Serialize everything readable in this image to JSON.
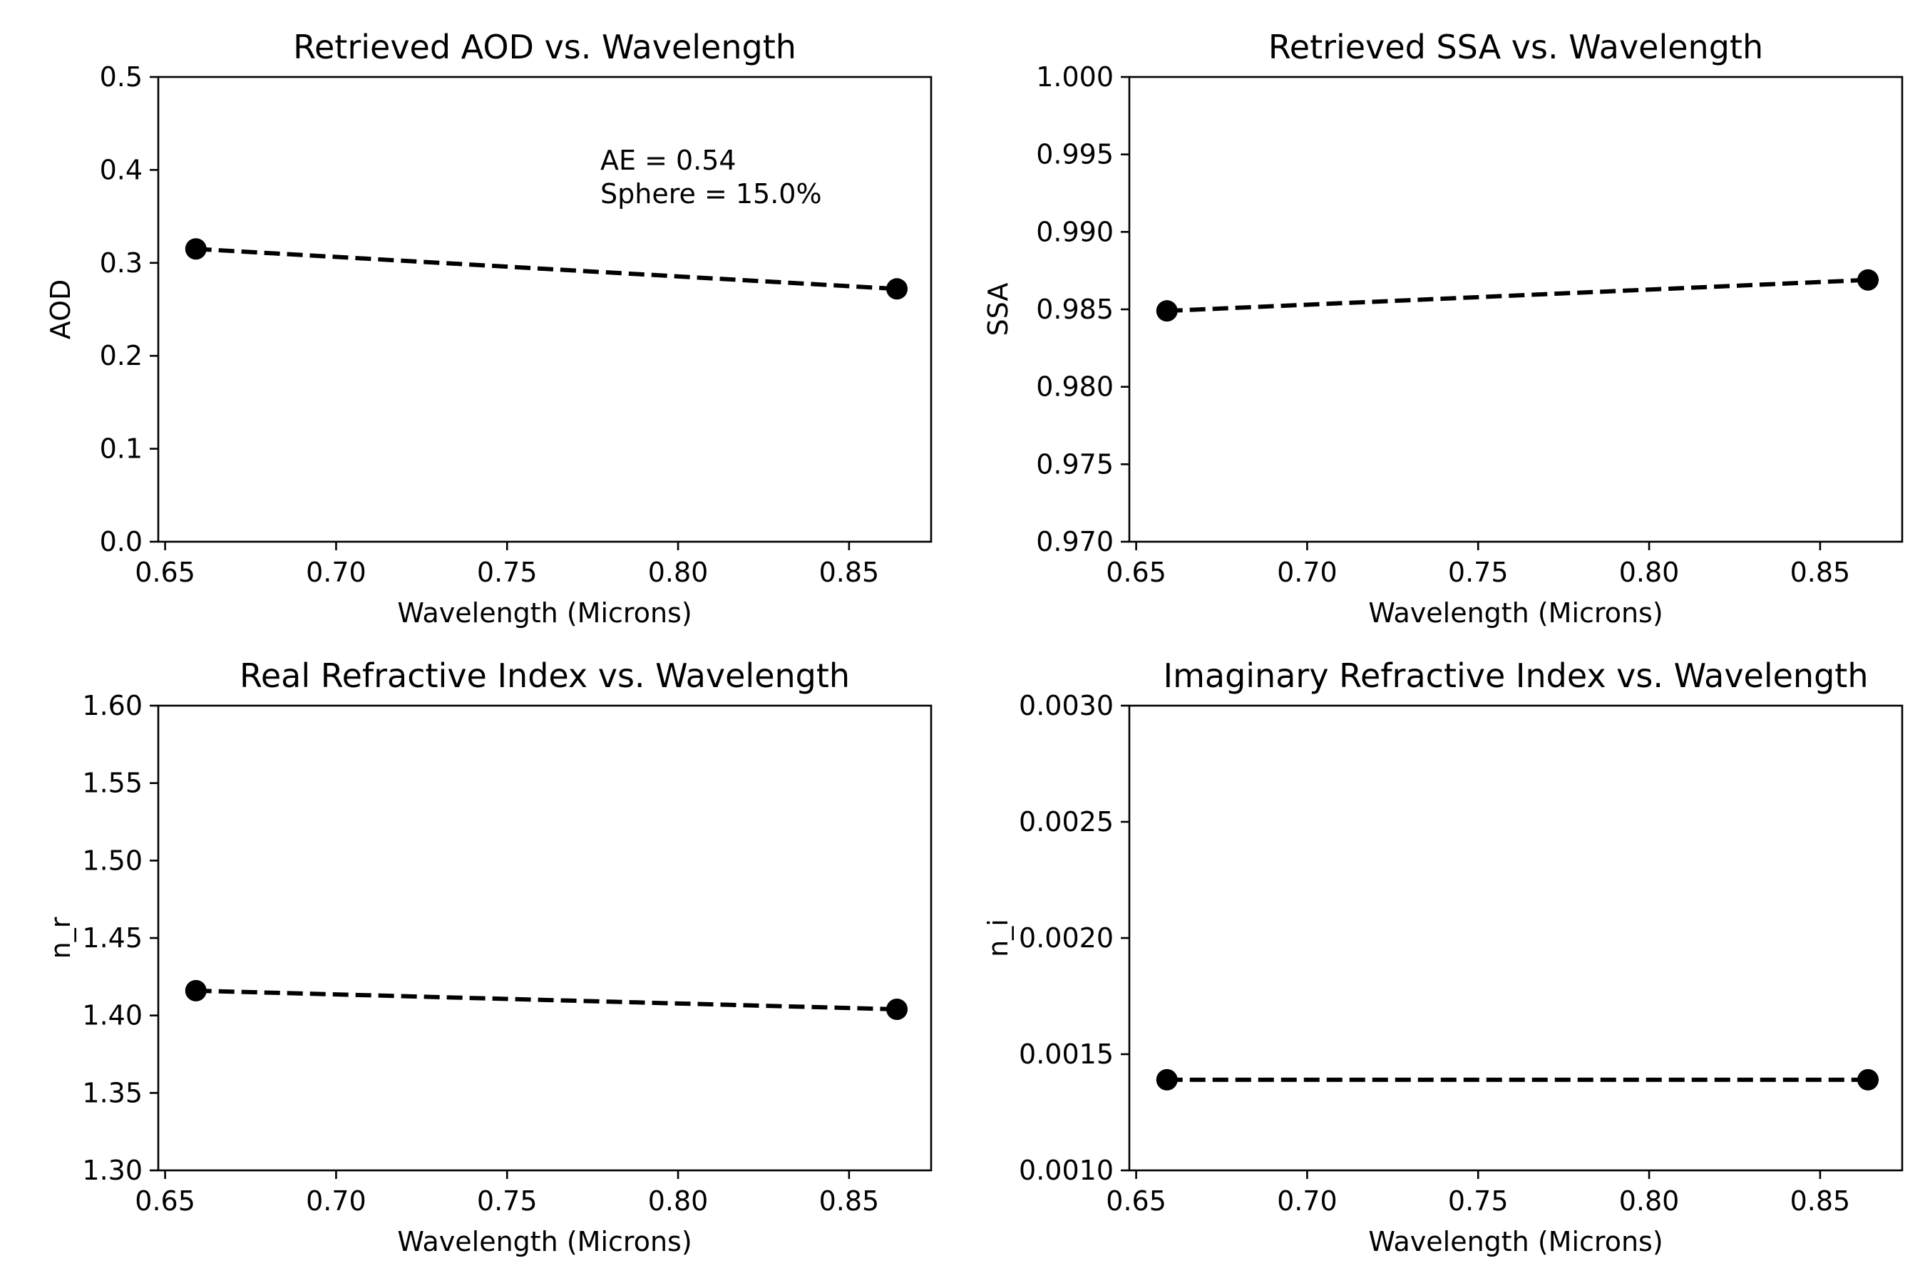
{
  "chart_data": [
    {
      "type": "line",
      "title": "Retrieved AOD vs. Wavelength",
      "xlabel": "Wavelength (Microns)",
      "ylabel": "AOD",
      "xlim": [
        0.648,
        0.874
      ],
      "ylim": [
        0.0,
        0.5
      ],
      "xticks": [
        "0.65",
        "0.70",
        "0.75",
        "0.80",
        "0.85"
      ],
      "yticks": [
        "0.0",
        "0.1",
        "0.2",
        "0.3",
        "0.4",
        "0.5"
      ],
      "grid": false,
      "series": [
        {
          "x": [
            0.659,
            0.864
          ],
          "y": [
            0.315,
            0.272
          ],
          "color": "#000000",
          "linestyle": "dashed",
          "marker": "circle"
        }
      ],
      "annotations": [
        "AE = 0.54",
        "Sphere = 15.0%"
      ]
    },
    {
      "type": "line",
      "title": "Retrieved SSA vs. Wavelength",
      "xlabel": "Wavelength (Microns)",
      "ylabel": "SSA",
      "xlim": [
        0.648,
        0.874
      ],
      "ylim": [
        0.97,
        1.0
      ],
      "xticks": [
        "0.65",
        "0.70",
        "0.75",
        "0.80",
        "0.85"
      ],
      "yticks": [
        "0.970",
        "0.975",
        "0.980",
        "0.985",
        "0.990",
        "0.995",
        "1.000"
      ],
      "grid": false,
      "series": [
        {
          "x": [
            0.659,
            0.864
          ],
          "y": [
            0.9849,
            0.9869
          ],
          "color": "#000000",
          "linestyle": "dashed",
          "marker": "circle"
        }
      ],
      "annotations": []
    },
    {
      "type": "line",
      "title": "Real Refractive Index vs. Wavelength",
      "xlabel": "Wavelength (Microns)",
      "ylabel": "n_r",
      "xlim": [
        0.648,
        0.874
      ],
      "ylim": [
        1.3,
        1.6
      ],
      "xticks": [
        "0.65",
        "0.70",
        "0.75",
        "0.80",
        "0.85"
      ],
      "yticks": [
        "1.30",
        "1.35",
        "1.40",
        "1.45",
        "1.50",
        "1.55",
        "1.60"
      ],
      "grid": false,
      "series": [
        {
          "x": [
            0.659,
            0.864
          ],
          "y": [
            1.416,
            1.404
          ],
          "color": "#000000",
          "linestyle": "dashed",
          "marker": "circle"
        }
      ],
      "annotations": []
    },
    {
      "type": "line",
      "title": "Imaginary Refractive Index vs. Wavelength",
      "xlabel": "Wavelength (Microns)",
      "ylabel": "n_i",
      "xlim": [
        0.648,
        0.874
      ],
      "ylim": [
        0.001,
        0.003
      ],
      "xticks": [
        "0.65",
        "0.70",
        "0.75",
        "0.80",
        "0.85"
      ],
      "yticks": [
        "0.0010",
        "0.0015",
        "0.0020",
        "0.0025",
        "0.0030"
      ],
      "grid": false,
      "series": [
        {
          "x": [
            0.659,
            0.864
          ],
          "y": [
            0.00139,
            0.00139
          ],
          "color": "#000000",
          "linestyle": "dashed",
          "marker": "circle"
        }
      ],
      "annotations": []
    }
  ]
}
